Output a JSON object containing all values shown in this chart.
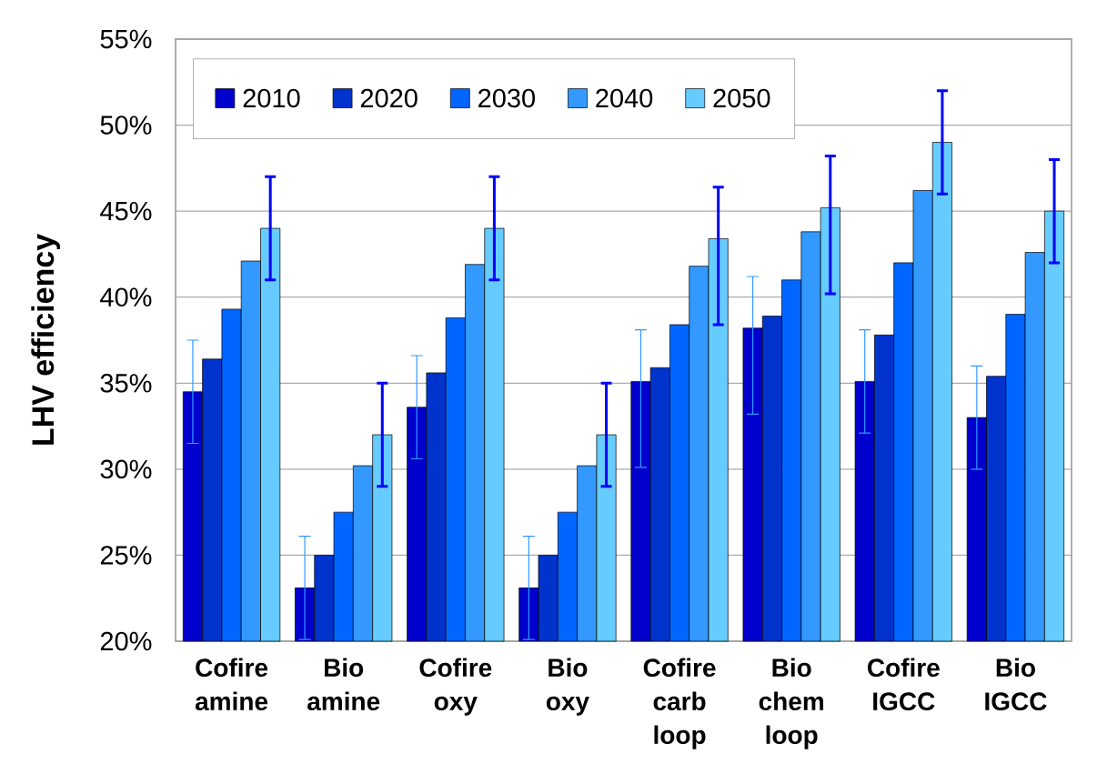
{
  "chart_data": {
    "type": "bar",
    "ylabel": "LHV efficiency",
    "categories": [
      "Cofire amine",
      "Bio amine",
      "Cofire oxy",
      "Bio oxy",
      "Cofire carb loop",
      "Bio chem loop",
      "Cofire IGCC",
      "Bio IGCC"
    ],
    "series": [
      {
        "name": "2010",
        "color": "#0000cc",
        "values": [
          34.5,
          23.1,
          33.6,
          23.1,
          35.1,
          38.2,
          35.1,
          33.0
        ],
        "errors": [
          [
            31.5,
            37.5
          ],
          [
            20.1,
            26.1
          ],
          [
            30.6,
            36.6
          ],
          [
            20.1,
            26.1
          ],
          [
            30.1,
            38.1
          ],
          [
            33.2,
            41.2
          ],
          [
            32.1,
            38.1
          ],
          [
            30.0,
            36.0
          ]
        ]
      },
      {
        "name": "2020",
        "color": "#0033cc",
        "values": [
          36.4,
          25.0,
          35.6,
          25.0,
          35.9,
          38.9,
          37.8,
          35.4
        ]
      },
      {
        "name": "2030",
        "color": "#0066ff",
        "values": [
          39.3,
          27.5,
          38.8,
          27.5,
          38.4,
          41.0,
          42.0,
          39.0
        ]
      },
      {
        "name": "2040",
        "color": "#3399ff",
        "values": [
          42.1,
          30.2,
          41.9,
          30.2,
          41.8,
          43.8,
          46.2,
          42.6
        ]
      },
      {
        "name": "2050",
        "color": "#66ccff",
        "values": [
          44.0,
          32.0,
          44.0,
          32.0,
          43.4,
          45.2,
          49.0,
          45.0
        ],
        "errors": [
          [
            41.0,
            47.0
          ],
          [
            29.0,
            35.0
          ],
          [
            41.0,
            47.0
          ],
          [
            29.0,
            35.0
          ],
          [
            38.4,
            46.4
          ],
          [
            40.2,
            48.2
          ],
          [
            46.0,
            52.0
          ],
          [
            42.0,
            48.0
          ]
        ]
      }
    ],
    "ylim": [
      20,
      55
    ],
    "yticks": [
      {
        "value": 20,
        "label": "20%"
      },
      {
        "value": 25,
        "label": "25%"
      },
      {
        "value": 30,
        "label": "30%"
      },
      {
        "value": 35,
        "label": "35%"
      },
      {
        "value": 40,
        "label": "40%"
      },
      {
        "value": 45,
        "label": "45%"
      },
      {
        "value": 50,
        "label": "50%"
      },
      {
        "value": 55,
        "label": "55%"
      }
    ],
    "grid": "y",
    "legend": "top left"
  }
}
